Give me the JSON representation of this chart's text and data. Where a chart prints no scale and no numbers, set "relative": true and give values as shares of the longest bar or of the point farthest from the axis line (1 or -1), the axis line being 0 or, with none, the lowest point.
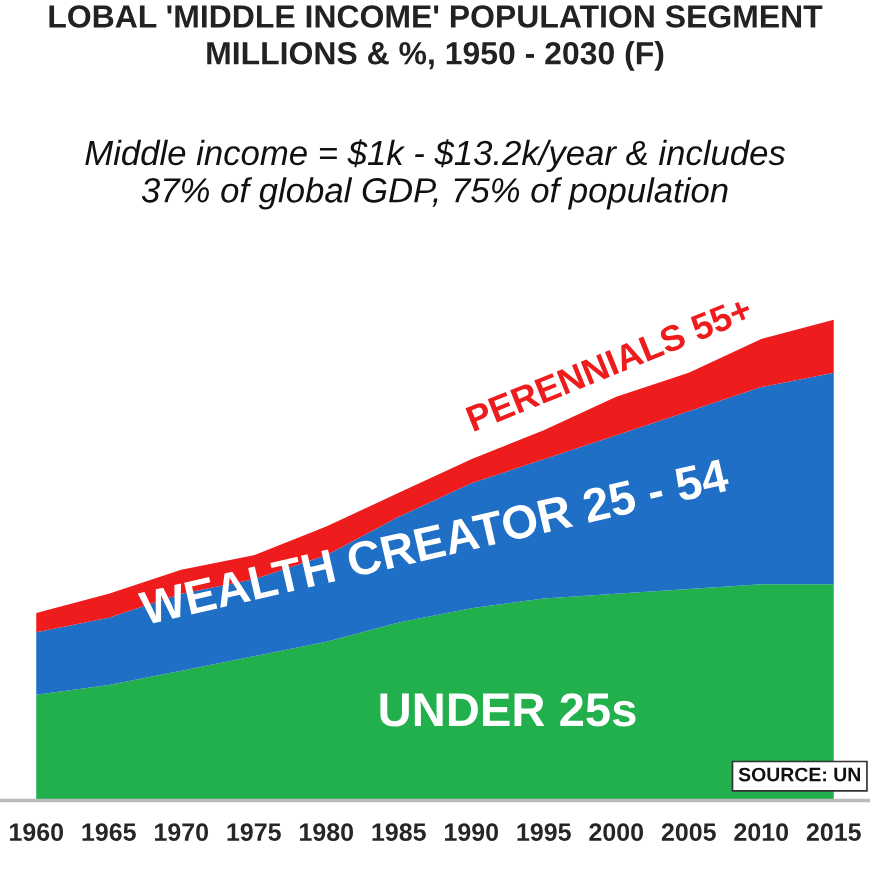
{
  "chart_data": {
    "type": "area",
    "stacked": true,
    "relative": true,
    "title": "LOBAL 'MIDDLE INCOME' POPULATION SEGMENT\nMILLIONS & %, 1950 - 2030 (F)",
    "subtitle": "Middle income = $1k - $13.2k/year & includes\n37% of global GDP, 75% of population",
    "categories": [
      "1960",
      "1965",
      "1970",
      "1975",
      "1980",
      "1985",
      "1990",
      "1995",
      "2000",
      "2005",
      "2010",
      "2015"
    ],
    "series": [
      {
        "name": "UNDER 25s",
        "color": "#21b04b",
        "values": [
          0.22,
          0.24,
          0.27,
          0.3,
          0.33,
          0.37,
          0.4,
          0.42,
          0.43,
          0.44,
          0.45,
          0.45
        ]
      },
      {
        "name": "WEALTH CREATOR 25 - 54",
        "color": "#1f6fc6",
        "values": [
          0.13,
          0.14,
          0.16,
          0.16,
          0.18,
          0.22,
          0.26,
          0.29,
          0.33,
          0.37,
          0.41,
          0.44
        ]
      },
      {
        "name": "PERENNIALS 55+",
        "color": "#ee1c1c",
        "values": [
          0.04,
          0.05,
          0.05,
          0.05,
          0.06,
          0.05,
          0.05,
          0.06,
          0.08,
          0.08,
          0.1,
          0.11
        ]
      }
    ],
    "annotations": [
      "SOURCE: UN"
    ],
    "legend": false
  }
}
